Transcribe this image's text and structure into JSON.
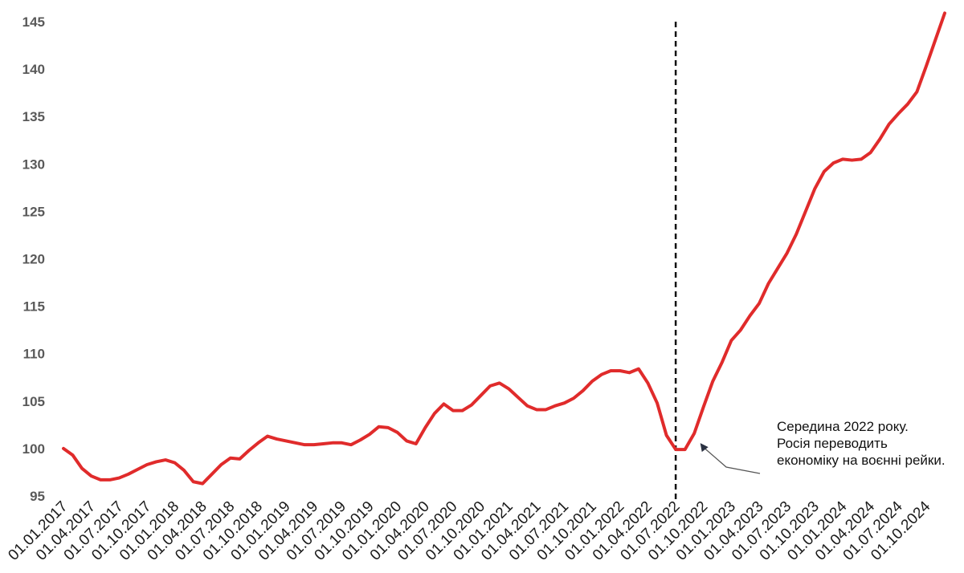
{
  "chart_data": {
    "type": "line",
    "title": "",
    "xlabel": "",
    "ylabel": "",
    "ylim": [
      95,
      145
    ],
    "y_ticks": [
      95,
      100,
      105,
      110,
      115,
      120,
      125,
      130,
      135,
      140,
      145
    ],
    "grid": false,
    "x_tick_labels": [
      "01.01.2017",
      "01.04.2017",
      "01.07.2017",
      "01.10.2017",
      "01.01.2018",
      "01.04.2018",
      "01.07.2018",
      "01.10.2018",
      "01.01.2019",
      "01.04.2019",
      "01.07.2019",
      "01.10.2019",
      "01.01.2020",
      "01.04.2020",
      "01.07.2020",
      "01.10.2020",
      "01.01.2021",
      "01.04.2021",
      "01.07.2021",
      "01.10.2021",
      "01.01.2022",
      "01.04.2022",
      "01.07.2022",
      "01.10.2022",
      "01.01.2023",
      "01.04.2023",
      "01.07.2023",
      "01.10.2023",
      "01.01.2024",
      "01.04.2024",
      "01.07.2024",
      "01.10.2024"
    ],
    "series": [
      {
        "color": "#e02b2b",
        "values": [
          100.0,
          99.3,
          97.9,
          97.1,
          96.7,
          96.7,
          96.9,
          97.3,
          97.8,
          98.3,
          98.6,
          98.8,
          98.5,
          97.7,
          96.5,
          96.3,
          97.3,
          98.3,
          99.0,
          98.9,
          99.8,
          100.6,
          101.3,
          101.0,
          100.8,
          100.6,
          100.4,
          100.4,
          100.5,
          100.6,
          100.6,
          100.4,
          100.9,
          101.5,
          102.3,
          102.2,
          101.7,
          100.8,
          100.5,
          102.2,
          103.7,
          104.7,
          104.0,
          104.0,
          104.6,
          105.6,
          106.6,
          106.9,
          106.3,
          105.4,
          104.5,
          104.1,
          104.1,
          104.5,
          104.8,
          105.3,
          106.1,
          107.1,
          107.8,
          108.2,
          108.2,
          108.0,
          108.4,
          106.9,
          104.8,
          101.4,
          99.9,
          99.9,
          101.6,
          104.4,
          107.1,
          109.1,
          111.4,
          112.5,
          114.0,
          115.3,
          117.4,
          119.0,
          120.6,
          122.6,
          125.0,
          127.4,
          129.2,
          130.1,
          130.5,
          130.4,
          130.5,
          131.2,
          132.6,
          134.2,
          135.3,
          136.3,
          137.6,
          140.3,
          143.1,
          145.9
        ]
      }
    ],
    "marker": {
      "x_index": 66,
      "style": "dashed-vertical",
      "color": "#111111"
    },
    "annotation": {
      "lines": [
        "Середина 2022 року.",
        "Росія переводить",
        "економіку на воєнні рейки."
      ],
      "arrow_to_index": 67,
      "arrow_color": "#555555"
    }
  }
}
